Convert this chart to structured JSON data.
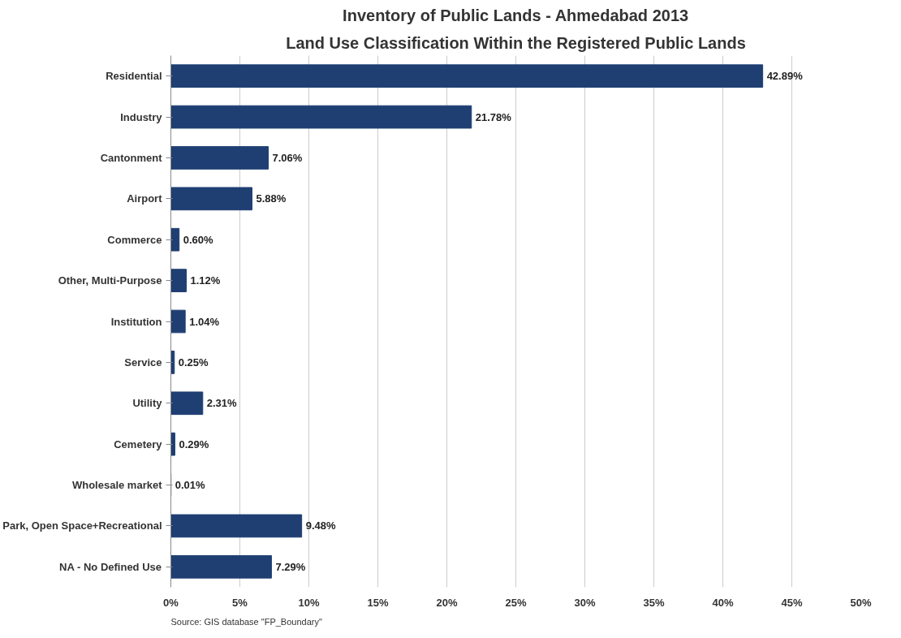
{
  "chart_data": {
    "type": "bar",
    "orientation": "horizontal",
    "title": "Inventory of Public Lands - Ahmedabad 2013",
    "subtitle": "Land Use Classification Within the Registered Public Lands",
    "categories": [
      "Residential",
      "Industry",
      "Cantonment",
      "Airport",
      "Commerce",
      "Other, Multi-Purpose",
      "Institution",
      "Service",
      "Utility",
      "Cemetery",
      "Wholesale market",
      "Park, Open Space+Recreational",
      "NA - No Defined Use"
    ],
    "values": [
      42.89,
      21.78,
      7.06,
      5.88,
      0.6,
      1.12,
      1.04,
      0.25,
      2.31,
      0.29,
      0.01,
      9.48,
      7.29
    ],
    "value_labels": [
      "42.89%",
      "21.78%",
      "7.06%",
      "5.88%",
      "0.60%",
      "1.12%",
      "1.04%",
      "0.25%",
      "2.31%",
      "0.29%",
      "0.01%",
      "9.48%",
      "7.29%"
    ],
    "color": "#1f3f73",
    "xlim": [
      0,
      50
    ],
    "xticks": [
      {
        "value": 0,
        "label": "0%"
      },
      {
        "value": 5,
        "label": "5%"
      },
      {
        "value": 10,
        "label": "10%"
      },
      {
        "value": 15,
        "label": "15%"
      },
      {
        "value": 20,
        "label": "20%"
      },
      {
        "value": 25,
        "label": "25%"
      },
      {
        "value": 30,
        "label": "30%"
      },
      {
        "value": 35,
        "label": "35%"
      },
      {
        "value": 40,
        "label": "40%"
      },
      {
        "value": 45,
        "label": "45%"
      },
      {
        "value": 50,
        "label": "50%"
      }
    ],
    "grid": "x",
    "annotations": [
      "Source: GIS database \"FP_Boundary\""
    ]
  }
}
